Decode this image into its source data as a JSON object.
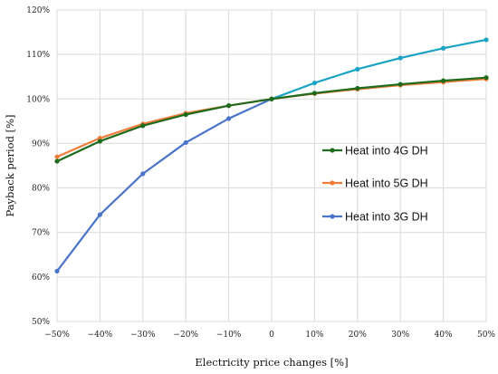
{
  "chart_data": {
    "type": "line",
    "xlabel": "Electricity price changes [%]",
    "ylabel": "Payback period [%]",
    "categories": [
      "−50%",
      "−40%",
      "−30%",
      "−20%",
      "−10%",
      "0",
      "10%",
      "20%",
      "30%",
      "40%",
      "50%"
    ],
    "x": [
      -50,
      -40,
      -30,
      -20,
      -10,
      0,
      10,
      20,
      30,
      40,
      50
    ],
    "y_ticks": [
      "50%",
      "60%",
      "70%",
      "80%",
      "90%",
      "100%",
      "110%",
      "120%"
    ],
    "ylim": [
      50,
      120
    ],
    "grid": true,
    "legend_position": "right",
    "series": [
      {
        "name": "Heat into 4G DH",
        "color": "#1e6b1e",
        "values": [
          86.0,
          90.5,
          94.0,
          96.5,
          98.5,
          100,
          101.3,
          102.4,
          103.3,
          104.1,
          104.8
        ]
      },
      {
        "name": "Heat into 5G DH",
        "color": "#f07d3a",
        "values": [
          87.0,
          91.2,
          94.4,
          96.8,
          98.5,
          100,
          101.2,
          102.2,
          103.1,
          103.8,
          104.5
        ]
      },
      {
        "name": "Heat into 3G DH",
        "color": "#4a74c9",
        "line_color_right": "#1aa3c4",
        "values": [
          61.3,
          74.0,
          83.2,
          90.2,
          95.6,
          100,
          103.6,
          106.7,
          109.2,
          111.4,
          113.3
        ]
      }
    ]
  }
}
